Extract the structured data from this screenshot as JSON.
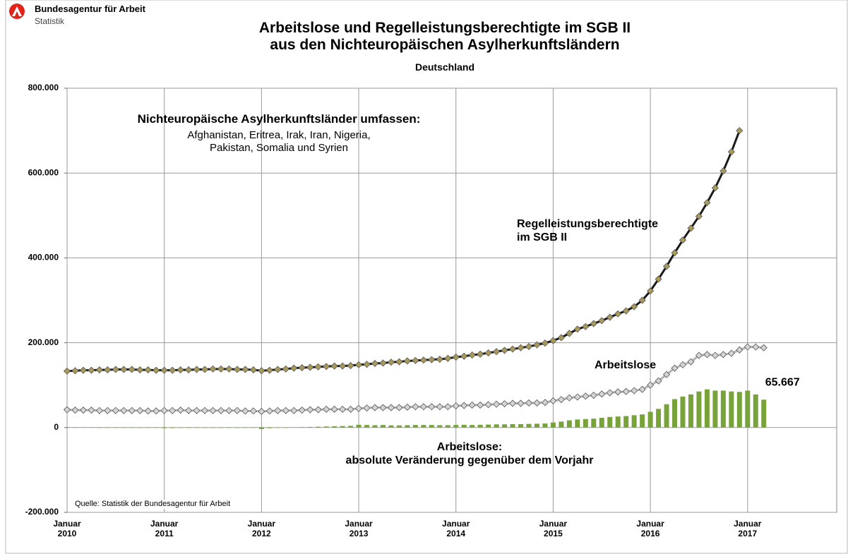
{
  "logo": {
    "name": "Bundesagentur für Arbeit",
    "unit": "Statistik"
  },
  "chart_data": {
    "type": "combo",
    "title": "Arbeitslose und Regelleistungsberechtigte im SGB II\naus den Nichteuropäischen Asylherkunftsländern",
    "subtitle": "Deutschland",
    "annotations": [
      "Nichteuropäische Asylherkunftsländer umfassen:",
      "Afghanistan, Eritrea, Irak, Iran, Nigeria,\nPakistan, Somalia und Syrien"
    ],
    "source": "Quelle: Statistik der Bundesagentur für Arbeit",
    "categories": [
      "Januar\n2010",
      null,
      null,
      null,
      null,
      null,
      null,
      null,
      null,
      null,
      null,
      null,
      "Januar\n2011",
      null,
      null,
      null,
      null,
      null,
      null,
      null,
      null,
      null,
      null,
      null,
      "Januar\n2012",
      null,
      null,
      null,
      null,
      null,
      null,
      null,
      null,
      null,
      null,
      null,
      "Januar\n2013",
      null,
      null,
      null,
      null,
      null,
      null,
      null,
      null,
      null,
      null,
      null,
      "Januar\n2014",
      null,
      null,
      null,
      null,
      null,
      null,
      null,
      null,
      null,
      null,
      null,
      "Januar\n2015",
      null,
      null,
      null,
      null,
      null,
      null,
      null,
      null,
      null,
      null,
      null,
      "Januar\n2016",
      null,
      null,
      null,
      null,
      null,
      null,
      null,
      null,
      null,
      null,
      null,
      "Januar\n2017",
      null,
      null,
      null,
      null,
      null,
      null,
      null,
      null,
      null,
      null,
      null
    ],
    "ylim": [
      -200000,
      800000
    ],
    "yticks": [
      {
        "value": -200000,
        "label": "-200.000"
      },
      0,
      {
        "value": 200000,
        "label": "200.000"
      },
      {
        "value": 400000,
        "label": "400.000"
      },
      {
        "value": 600000,
        "label": "600.000"
      },
      {
        "value": 800000,
        "label": "800.000"
      }
    ],
    "grid": true,
    "series": [
      {
        "name": "Regelleistungsberechtigte\nim SGB II",
        "type": "line",
        "color": "#1a1a1a",
        "marker_color": "#a99a5c",
        "values": [
          133000,
          134000,
          135000,
          135000,
          136000,
          136000,
          137000,
          137000,
          137000,
          136000,
          136000,
          135000,
          135000,
          135000,
          136000,
          136000,
          137000,
          137000,
          138000,
          138000,
          138000,
          137000,
          137000,
          136000,
          134000,
          135000,
          137000,
          138000,
          140000,
          141000,
          142000,
          143000,
          144000,
          145000,
          145000,
          146000,
          148000,
          149000,
          151000,
          152000,
          154000,
          155000,
          157000,
          158000,
          159000,
          160000,
          161000,
          163000,
          166000,
          168000,
          171000,
          173000,
          176000,
          179000,
          182000,
          185000,
          188000,
          191000,
          195000,
          199000,
          205000,
          212000,
          222000,
          232000,
          238000,
          245000,
          252000,
          260000,
          268000,
          275000,
          285000,
          300000,
          322000,
          350000,
          380000,
          412000,
          442000,
          470000,
          498000,
          530000,
          565000,
          605000,
          650000,
          700000,
          null,
          null,
          null,
          null,
          null,
          null,
          null,
          null,
          null,
          null,
          null,
          null
        ]
      },
      {
        "name": "Arbeitslose",
        "type": "line",
        "color": "#b4b4b4",
        "marker_color": "#d4d4d4",
        "values": [
          42000,
          41000,
          41000,
          41000,
          40000,
          40000,
          40000,
          40000,
          40000,
          40000,
          39000,
          39000,
          40000,
          40000,
          41000,
          40000,
          40000,
          40000,
          40000,
          40000,
          40000,
          40000,
          39000,
          39000,
          38000,
          39000,
          40000,
          40000,
          40000,
          41000,
          42000,
          42000,
          43000,
          43000,
          43000,
          43000,
          45000,
          46000,
          47000,
          47000,
          47000,
          47000,
          48000,
          49000,
          49000,
          49000,
          49000,
          49000,
          51000,
          52000,
          53000,
          53000,
          54000,
          55000,
          56000,
          57000,
          57000,
          58000,
          58000,
          59000,
          63000,
          66000,
          70000,
          72000,
          74000,
          76000,
          79000,
          82000,
          84000,
          85000,
          87000,
          90000,
          100000,
          110000,
          125000,
          140000,
          148000,
          155000,
          170000,
          172000,
          170000,
          172000,
          175000,
          183000,
          190000,
          190000,
          188000,
          null,
          null,
          null,
          null,
          null,
          null,
          null,
          null,
          null
        ]
      },
      {
        "name": "Arbeitslose:\nabsolute Veränderung gegenüber dem Vorjahr",
        "type": "bar",
        "color": "#77a33a",
        "values": [
          1000,
          800,
          600,
          400,
          200,
          0,
          -200,
          -300,
          -400,
          -500,
          -600,
          -700,
          -1500,
          -1200,
          -500,
          -900,
          -600,
          -400,
          -300,
          -200,
          0,
          0,
          0,
          0,
          -3500,
          -1500,
          -700,
          0,
          500,
          1000,
          1500,
          2000,
          2500,
          3000,
          3500,
          4000,
          6500,
          6000,
          5500,
          6000,
          5000,
          5000,
          5500,
          6000,
          6000,
          6000,
          5500,
          5500,
          6000,
          6500,
          6000,
          6500,
          7000,
          7500,
          7500,
          8000,
          8000,
          8500,
          9000,
          9500,
          12000,
          14000,
          17000,
          19000,
          20000,
          21000,
          23000,
          25000,
          26000,
          27000,
          29000,
          31000,
          37000,
          44000,
          55000,
          67000,
          73000,
          78000,
          85000,
          90000,
          87000,
          87000,
          85000,
          84000,
          87000,
          78000,
          65667,
          null,
          null,
          null,
          null,
          null,
          null,
          null,
          null,
          null
        ],
        "value_labels": [
          null,
          null,
          null,
          null,
          null,
          null,
          null,
          null,
          null,
          null,
          null,
          null,
          null,
          null,
          null,
          null,
          null,
          null,
          null,
          null,
          null,
          null,
          null,
          null,
          null,
          null,
          null,
          null,
          null,
          null,
          null,
          null,
          null,
          null,
          null,
          null,
          null,
          null,
          null,
          null,
          null,
          null,
          null,
          null,
          null,
          null,
          null,
          null,
          null,
          null,
          null,
          null,
          null,
          null,
          null,
          null,
          null,
          null,
          null,
          null,
          null,
          null,
          null,
          null,
          null,
          null,
          null,
          null,
          null,
          null,
          null,
          null,
          null,
          null,
          null,
          null,
          null,
          null,
          null,
          null,
          null,
          null,
          null,
          null,
          null,
          null,
          "65.667",
          null,
          null,
          null,
          null,
          null,
          null,
          null,
          null,
          null
        ]
      }
    ]
  }
}
